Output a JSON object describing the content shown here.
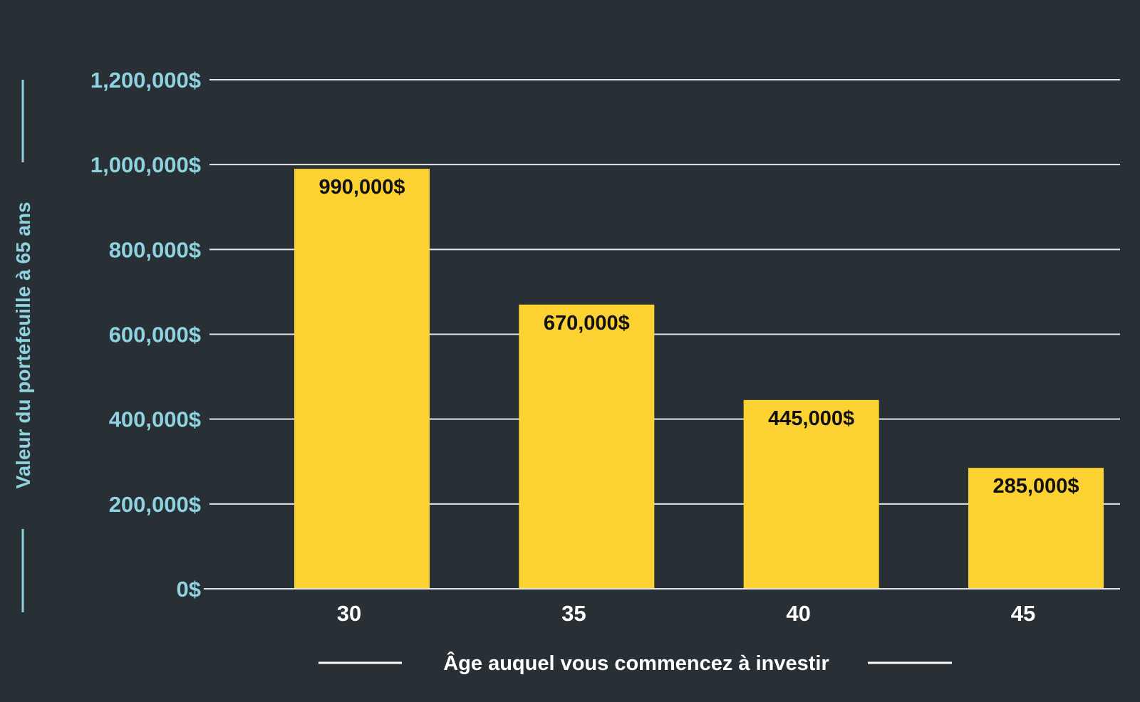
{
  "colors": {
    "background": "#283035",
    "bar": "#FCD232",
    "gridline": "#e6e6e6",
    "y_tick_text": "#8fd3e0",
    "x_tick_text": "#ffffff",
    "data_label_text": "#111111"
  },
  "chart_data": {
    "type": "bar",
    "title": "",
    "xlabel": "Âge auquel vous commencez à investir",
    "ylabel": "Valeur du portefeuille à 65 ans",
    "categories": [
      "30",
      "35",
      "40",
      "45"
    ],
    "values": [
      990000,
      670000,
      445000,
      285000
    ],
    "data_labels": [
      "990,000$",
      "670,000$",
      "445,000$",
      "285,000$"
    ],
    "ylim": [
      0,
      1200000
    ],
    "yticks": [
      0,
      200000,
      400000,
      600000,
      800000,
      1000000,
      1200000
    ],
    "ytick_labels": [
      "0$",
      "200,000$",
      "400,000$",
      "600,000$",
      "800,000$",
      "1,000,000$",
      "1,200,000$"
    ],
    "grid": true,
    "legend": "none"
  }
}
